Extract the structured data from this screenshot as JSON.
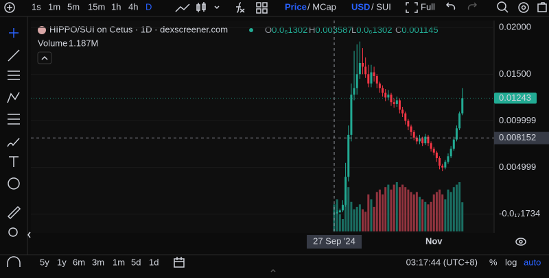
{
  "toolbar": {
    "intervals": [
      "1s",
      "1m",
      "5m",
      "15m",
      "1h",
      "4h",
      "D"
    ],
    "price": "Price",
    "mcap": "/ MCap",
    "usd": "USD",
    "sui": "/ SUI",
    "full": "Full"
  },
  "legend": {
    "title": "HIPPO/SUI on Cetus · 1D · dexscreener.com",
    "ohlc": [
      {
        "key": "O",
        "value": "0.0₆1302"
      },
      {
        "key": "H",
        "value": "0.003587"
      },
      {
        "key": "L",
        "value": "0.0₆1302"
      },
      {
        "key": "C",
        "value": "0.001145"
      }
    ],
    "volume_label": "Volume",
    "volume_value": "1.187M"
  },
  "bottom_bar": {
    "ranges": [
      "5y",
      "1y",
      "6m",
      "3m",
      "1m",
      "5d",
      "1d"
    ],
    "time": "03:17:44 (UTC+8)",
    "percent": "%",
    "log": "log",
    "auto": "auto"
  },
  "chart_data": {
    "type": "candlestick",
    "categories": [
      null,
      null,
      null,
      null,
      null,
      null,
      null,
      null,
      null,
      null,
      null,
      null,
      null,
      null,
      null,
      null,
      null,
      null,
      null,
      null,
      null,
      null,
      null,
      null,
      null,
      null,
      null,
      null,
      null,
      null,
      null,
      null,
      null,
      null,
      null,
      "Nov",
      null,
      null,
      null,
      null,
      null,
      null,
      null,
      null,
      null,
      null
    ],
    "open": [
      0.0001,
      0.0001,
      0.0002,
      0.0004,
      0.001,
      0.004,
      0.0085,
      0.0128,
      0.0135,
      0.015,
      0.0162,
      0.0158,
      0.015,
      0.014,
      0.0152,
      0.0148,
      0.014,
      0.0135,
      0.013,
      0.0125,
      0.0128,
      0.012,
      0.0118,
      0.0122,
      0.0112,
      0.0108,
      0.01,
      0.0094,
      0.0088,
      0.0082,
      0.0078,
      0.0081,
      0.0076,
      0.0083,
      0.0076,
      0.007,
      0.0066,
      0.006,
      0.0052,
      0.005,
      0.0056,
      0.0062,
      0.007,
      0.008,
      0.0092,
      0.0108
    ],
    "high": [
      0.0003,
      0.0004,
      0.0006,
      0.0015,
      0.0055,
      0.0095,
      0.014,
      0.0175,
      0.0182,
      0.0185,
      0.0178,
      0.0168,
      0.016,
      0.016,
      0.0158,
      0.015,
      0.0142,
      0.0138,
      0.0134,
      0.0133,
      0.013,
      0.0124,
      0.0126,
      0.0124,
      0.0115,
      0.011,
      0.0102,
      0.0096,
      0.009,
      0.0084,
      0.0085,
      0.0083,
      0.0086,
      0.0085,
      0.0078,
      0.0072,
      0.0068,
      0.0062,
      0.0054,
      0.0058,
      0.0065,
      0.0073,
      0.0083,
      0.0095,
      0.011,
      0.0135
    ],
    "low": [
      0.0,
      0.0,
      0.0001,
      0.0002,
      0.0008,
      0.0035,
      0.0078,
      0.0122,
      0.0128,
      0.0145,
      0.015,
      0.0146,
      0.0136,
      0.0136,
      0.0142,
      0.0135,
      0.013,
      0.0126,
      0.0121,
      0.0122,
      0.0116,
      0.0114,
      0.0115,
      0.0108,
      0.0104,
      0.0096,
      0.009,
      0.0084,
      0.0079,
      0.0075,
      0.0075,
      0.0073,
      0.0074,
      0.0073,
      0.0067,
      0.0063,
      0.0056,
      0.0048,
      0.0046,
      0.0048,
      0.0054,
      0.006,
      0.0068,
      0.0078,
      0.009,
      0.0106
    ],
    "close": [
      0.0001,
      0.0002,
      0.0004,
      0.001,
      0.004,
      0.0085,
      0.0128,
      0.0135,
      0.015,
      0.0162,
      0.0158,
      0.015,
      0.014,
      0.0152,
      0.0148,
      0.014,
      0.0135,
      0.013,
      0.0125,
      0.0128,
      0.012,
      0.0118,
      0.0122,
      0.0112,
      0.0108,
      0.01,
      0.0094,
      0.0088,
      0.0082,
      0.0078,
      0.0081,
      0.0076,
      0.0083,
      0.0076,
      0.007,
      0.0066,
      0.006,
      0.0052,
      0.005,
      0.0056,
      0.0062,
      0.007,
      0.008,
      0.0092,
      0.0108,
      0.01243
    ],
    "volumes": [
      1100000,
      1300000,
      700000,
      500000,
      1500000,
      1800000,
      1200000,
      900000,
      1000000,
      1100000,
      900000,
      800000,
      1500000,
      1300000,
      1000000,
      1600000,
      1700000,
      1500000,
      1800000,
      1900000,
      1700000,
      1900000,
      2000000,
      1800000,
      1900000,
      1800000,
      1700000,
      1600000,
      1500000,
      1600000,
      1400000,
      1300000,
      1200000,
      1100000,
      1200000,
      1500000,
      1600000,
      1700000,
      1500000,
      1300000,
      1700000,
      1600000,
      1800000,
      1900000,
      2000000,
      1187000
    ],
    "up_color": "#22ab94",
    "down_color": "#f23645",
    "up_volume_color": "#1a6e62",
    "down_volume_color": "#93343f",
    "ylim": [
      -0.002,
      0.0206
    ],
    "yticks": [
      {
        "value": 0.02,
        "label": "0.02000"
      },
      {
        "value": 0.015,
        "label": "0.01500"
      },
      {
        "value": 0.009999,
        "label": "0.009999"
      },
      {
        "value": 0.004999,
        "label": "0.004999"
      },
      {
        "value": -1.734e-19,
        "label": "-0.0₁₇1734"
      }
    ],
    "grid": true,
    "last_price": {
      "value": 0.01243,
      "label": "0.01243"
    },
    "crosshair": {
      "price": {
        "value": 0.008152,
        "label": "0.008152"
      },
      "x_label": "27 Sep '24"
    }
  }
}
